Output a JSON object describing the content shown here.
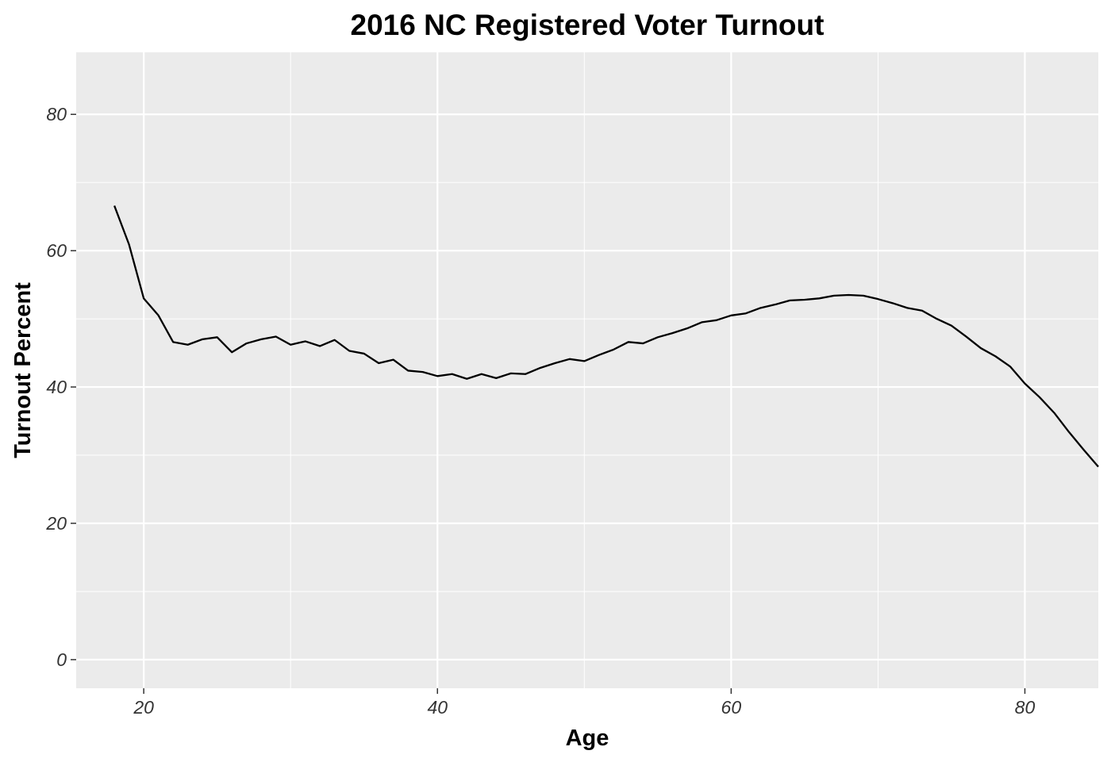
{
  "chart_data": {
    "type": "line",
    "title": "2016 NC Registered Voter Turnout",
    "x_label": "Age",
    "y_label": "Turnout Percent",
    "x": [
      18,
      19,
      20,
      21,
      22,
      23,
      24,
      25,
      26,
      27,
      28,
      29,
      30,
      31,
      32,
      33,
      34,
      35,
      36,
      37,
      38,
      39,
      40,
      41,
      42,
      43,
      44,
      45,
      46,
      47,
      48,
      49,
      50,
      51,
      52,
      53,
      54,
      55,
      56,
      57,
      58,
      59,
      60,
      61,
      62,
      63,
      64,
      65,
      66,
      67,
      68,
      69,
      70,
      71,
      72,
      73,
      74,
      75,
      76,
      77,
      78,
      79,
      80,
      81,
      82,
      83,
      84,
      85
    ],
    "series": [
      {
        "name": "Turnout",
        "color": "#000000",
        "values": [
          66.6,
          60.9,
          53.0,
          50.5,
          46.6,
          46.2,
          47.0,
          47.3,
          45.1,
          46.4,
          47.0,
          47.4,
          46.2,
          46.7,
          46.0,
          46.9,
          45.3,
          44.9,
          43.5,
          44.0,
          42.4,
          42.2,
          41.6,
          41.9,
          41.2,
          41.9,
          41.3,
          42.0,
          41.9,
          42.8,
          43.5,
          44.1,
          43.8,
          44.7,
          45.5,
          46.6,
          46.4,
          47.3,
          47.9,
          48.6,
          49.5,
          49.8,
          50.5,
          50.8,
          51.6,
          52.1,
          52.7,
          52.8,
          53.0,
          53.4,
          53.5,
          53.4,
          52.9,
          52.3,
          51.6,
          51.2,
          50.0,
          49.0,
          47.4,
          45.7,
          44.5,
          43.0,
          40.5,
          38.5,
          36.2,
          33.4,
          30.8,
          28.3
        ]
      }
    ],
    "xlim": [
      15.4,
      85.0
    ],
    "ylim": [
      -4.2,
      89.1
    ],
    "xticks": [
      20,
      40,
      60,
      80
    ],
    "yticks": [
      0,
      20,
      40,
      60,
      80
    ],
    "x_minor_ticks": [
      30,
      50,
      70
    ],
    "y_minor_ticks": [
      10,
      30,
      50,
      70
    ],
    "grid": true,
    "panel_color": "#ebebeb"
  }
}
